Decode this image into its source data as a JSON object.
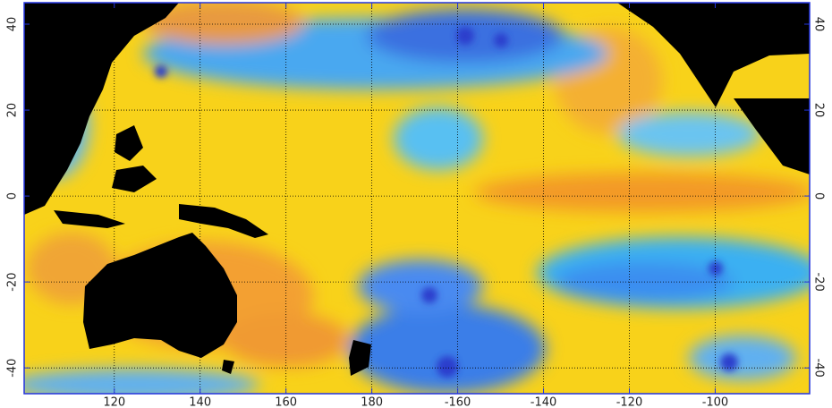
{
  "map": {
    "xlim": [
      99,
      282
    ],
    "ylim": [
      -46,
      45
    ],
    "xticks": [
      120,
      140,
      160,
      180,
      {
        "value": 200,
        "label": "-160"
      },
      {
        "value": 220,
        "label": "-140"
      },
      {
        "value": 240,
        "label": "-120"
      },
      {
        "value": 260,
        "label": "-100"
      }
    ],
    "yticks": [
      40,
      20,
      0,
      -20,
      -40
    ],
    "grid": true
  }
}
